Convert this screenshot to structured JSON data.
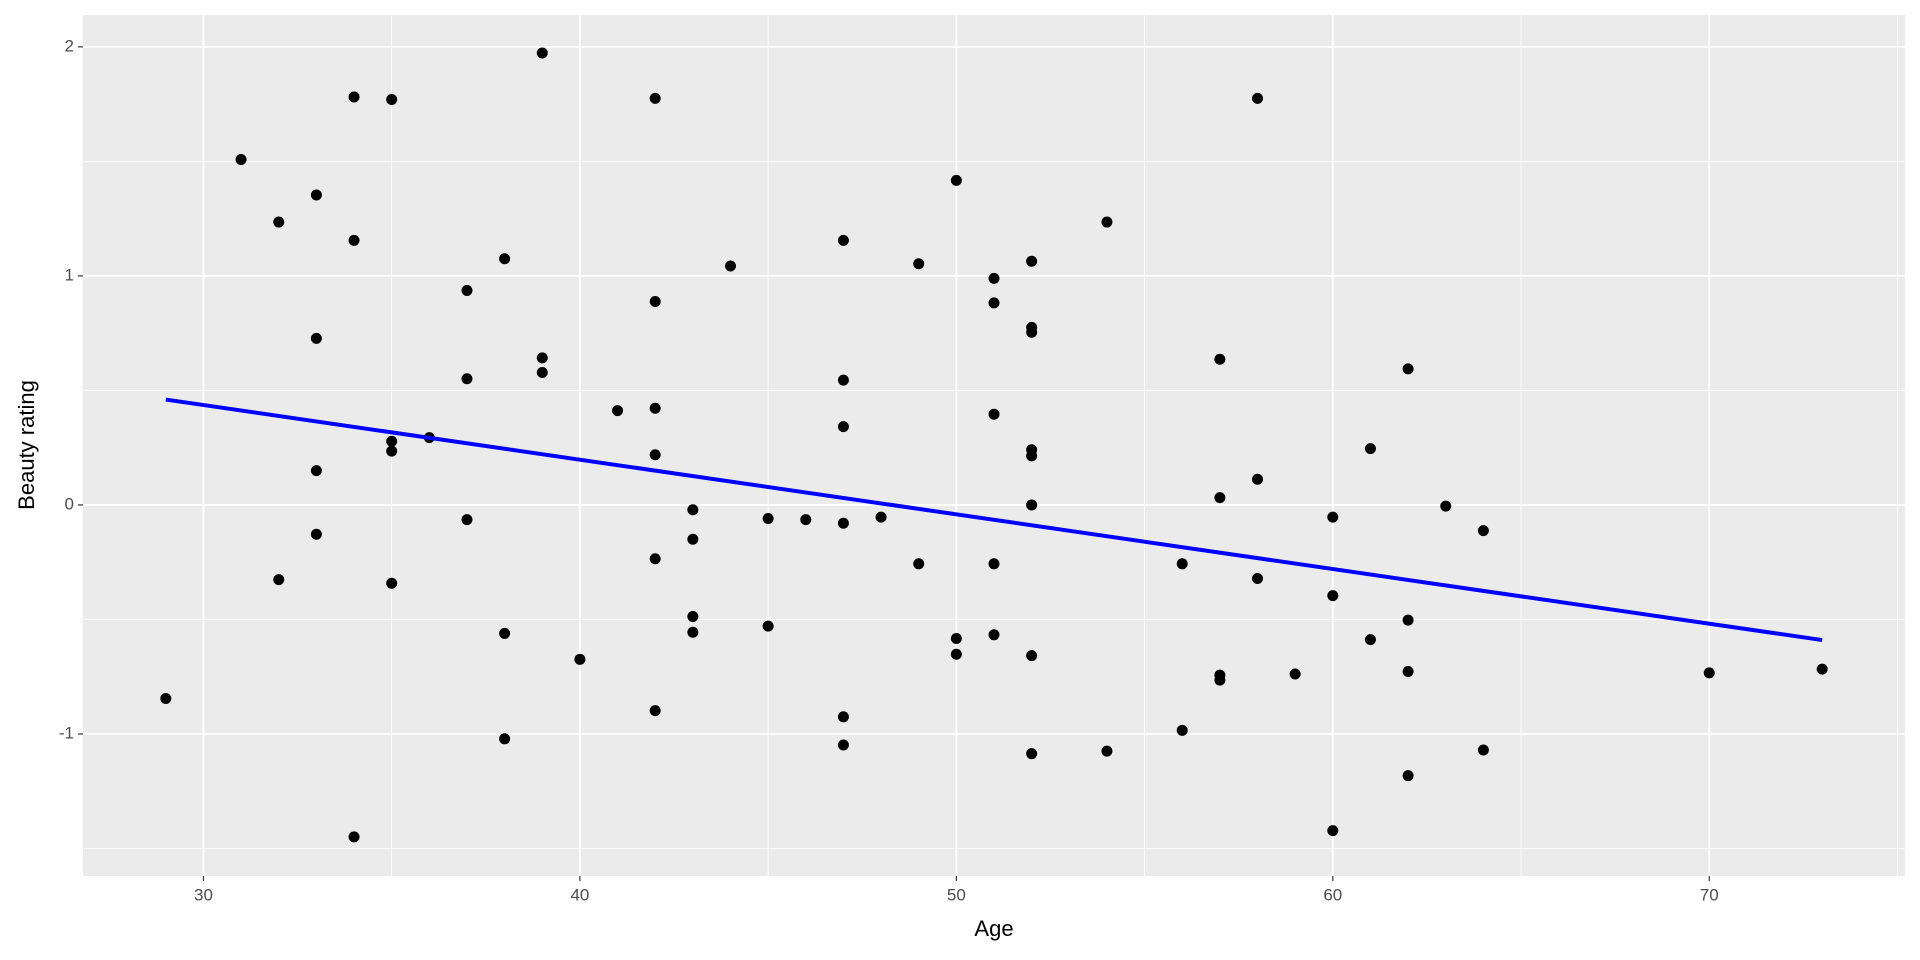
{
  "chart_data": {
    "type": "scatter",
    "x_label": "Age",
    "y_label": "Beauty rating",
    "x": [
      29,
      31,
      32,
      32,
      33,
      33,
      33,
      33,
      34,
      34,
      34,
      35,
      35,
      35,
      35,
      36,
      37,
      37,
      37,
      38,
      38,
      38,
      39,
      39,
      39,
      40,
      41,
      42,
      42,
      42,
      42,
      42,
      42,
      43,
      43,
      43,
      43,
      44,
      45,
      45,
      46,
      47,
      47,
      47,
      47,
      47,
      47,
      48,
      49,
      49,
      50,
      50,
      50,
      51,
      51,
      51,
      51,
      51,
      52,
      52,
      52,
      52,
      52,
      52,
      52,
      52,
      54,
      54,
      56,
      56,
      57,
      57,
      57,
      57,
      58,
      58,
      58,
      59,
      60,
      60,
      60,
      61,
      61,
      62,
      62,
      62,
      62,
      63,
      64,
      64,
      70,
      73
    ],
    "y": [
      -0.845,
      1.508,
      1.235,
      -0.326,
      1.353,
      0.727,
      0.15,
      -0.128,
      1.781,
      1.155,
      -1.449,
      1.77,
      0.278,
      0.235,
      -0.342,
      0.294,
      0.936,
      0.551,
      -0.064,
      1.075,
      -0.561,
      -1.021,
      1.973,
      0.642,
      0.578,
      -0.674,
      0.412,
      1.775,
      0.888,
      0.422,
      0.219,
      -0.235,
      -0.898,
      -0.021,
      -0.15,
      -0.487,
      -0.556,
      1.043,
      -0.059,
      -0.529,
      -0.064,
      1.155,
      0.545,
      0.342,
      -0.08,
      -0.925,
      -1.048,
      -0.053,
      1.053,
      -0.257,
      1.417,
      -0.583,
      -0.652,
      0.989,
      0.882,
      0.396,
      -0.257,
      -0.567,
      1.064,
      0.775,
      0.754,
      0.241,
      0.214,
      0,
      -0.658,
      -1.086,
      1.235,
      -1.075,
      -0.257,
      -0.984,
      0.636,
      0.032,
      -0.743,
      -0.765,
      1.775,
      0.112,
      -0.321,
      -0.738,
      -0.053,
      -0.396,
      -1.422,
      0.246,
      -0.588,
      0.594,
      -0.503,
      -0.727,
      -1.182,
      -0.005,
      -0.112,
      -1.07,
      -0.733,
      -0.717
    ],
    "color": "#000000",
    "fit": {
      "x": [
        29,
        73
      ],
      "y": [
        0.46,
        -0.59
      ],
      "color": "#0000ff"
    },
    "xlim": [
      26.8,
      75.2
    ],
    "ylim": [
      -1.62,
      2.139
    ],
    "xticks": [
      30,
      40,
      50,
      60,
      70
    ],
    "yticks": [
      -1,
      0,
      1,
      2
    ],
    "x_minor_grid": [
      35,
      45,
      55,
      65,
      75
    ],
    "y_minor_grid": [
      -1.5,
      -0.5,
      0.5,
      1.5
    ],
    "grid": true
  }
}
